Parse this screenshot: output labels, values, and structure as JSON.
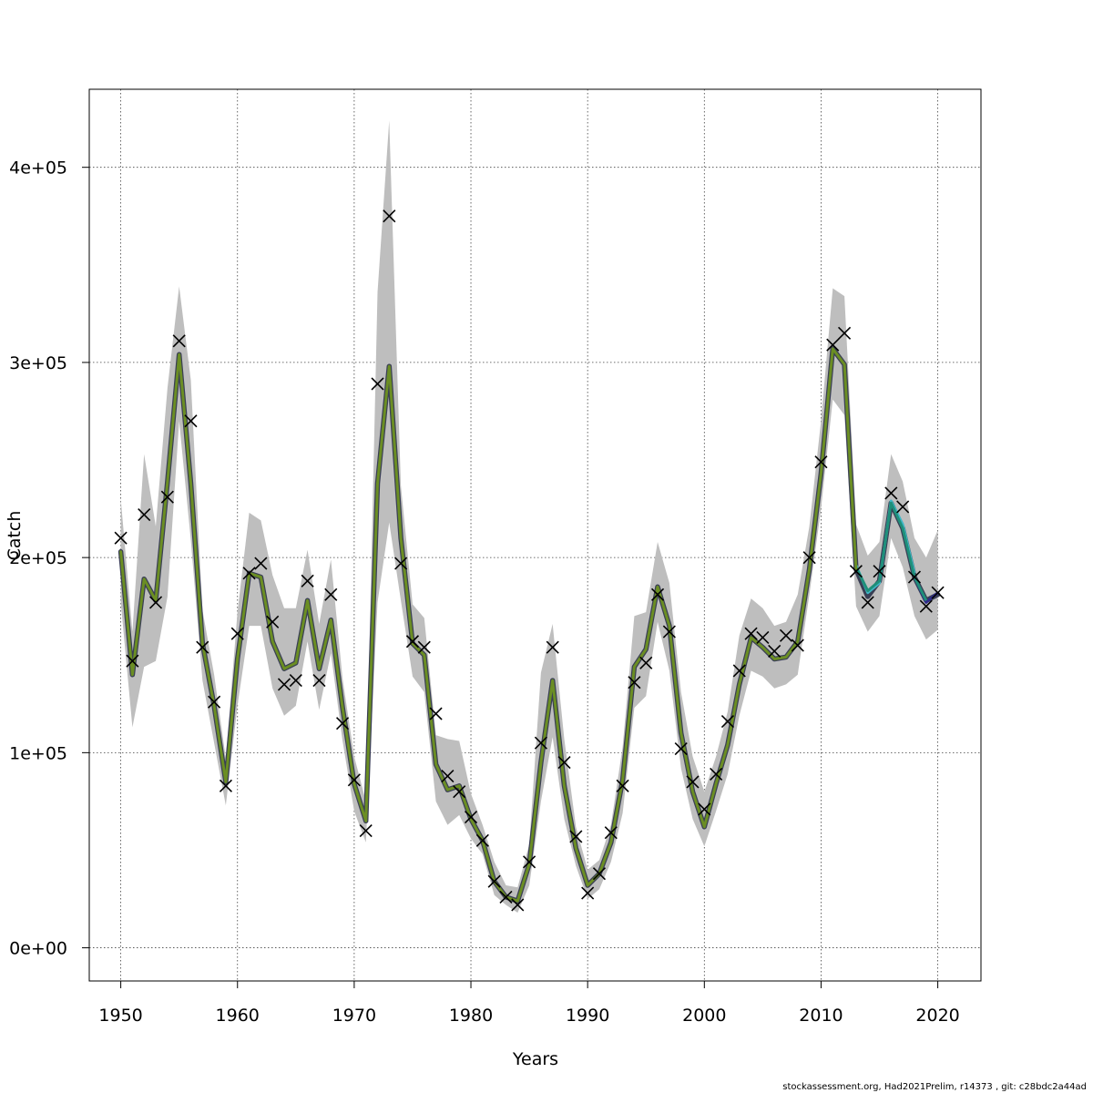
{
  "chart_data": {
    "type": "line",
    "title": "",
    "xlabel": "Years",
    "ylabel": "Catch",
    "xlim": [
      1947.3,
      2023.7
    ],
    "ylim": [
      -17000,
      440000
    ],
    "x_ticks": [
      1950,
      1960,
      1970,
      1980,
      1990,
      2000,
      2010,
      2020
    ],
    "x_tick_labels": [
      "1950",
      "1960",
      "1970",
      "1980",
      "1990",
      "2000",
      "2010",
      "2020"
    ],
    "y_ticks": [
      0,
      100000,
      200000,
      300000,
      400000
    ],
    "y_tick_labels": [
      "0e+00",
      "1e+05",
      "2e+05",
      "3e+05",
      "4e+05"
    ],
    "grid": true,
    "colors": {
      "band": "#bebebe",
      "fit_main": "#6b8e23",
      "fit_peel_1": "#1f8f7a",
      "fit_peel_2": "#40b7c7",
      "fit_peel_3": "#2e2a8a",
      "observed": "#000000"
    },
    "years": [
      1950,
      1951,
      1952,
      1953,
      1954,
      1955,
      1956,
      1957,
      1958,
      1959,
      1960,
      1961,
      1962,
      1963,
      1964,
      1965,
      1966,
      1967,
      1968,
      1969,
      1970,
      1971,
      1972,
      1973,
      1974,
      1975,
      1976,
      1977,
      1978,
      1979,
      1980,
      1981,
      1982,
      1983,
      1984,
      1985,
      1986,
      1987,
      1988,
      1989,
      1990,
      1991,
      1992,
      1993,
      1994,
      1995,
      1996,
      1997,
      1998,
      1999,
      2000,
      2001,
      2002,
      2003,
      2004,
      2005,
      2006,
      2007,
      2008,
      2009,
      2010,
      2011,
      2012,
      2013,
      2014,
      2015,
      2016,
      2017,
      2018,
      2019,
      2020
    ],
    "observed": [
      210000,
      147000,
      222000,
      177000,
      231000,
      311000,
      270000,
      154000,
      126000,
      83000,
      161000,
      192000,
      197000,
      167000,
      135000,
      137000,
      188000,
      137000,
      181000,
      115000,
      86000,
      60000,
      289000,
      375000,
      197000,
      157000,
      154000,
      120000,
      88000,
      80000,
      67000,
      55000,
      34000,
      26000,
      22000,
      44000,
      105000,
      154000,
      95000,
      57000,
      28000,
      38000,
      59000,
      83000,
      136000,
      146000,
      181000,
      162000,
      102000,
      85000,
      71000,
      89000,
      116000,
      142000,
      161000,
      159000,
      152000,
      160000,
      155000,
      200000,
      249000,
      309000,
      315000,
      193000,
      177000,
      193000,
      233000,
      226000,
      190000,
      175000,
      182000
    ],
    "fitted": [
      203000,
      140000,
      189000,
      178000,
      239000,
      304000,
      238000,
      156000,
      124000,
      85000,
      148000,
      192000,
      190000,
      157000,
      143000,
      146000,
      178000,
      143000,
      168000,
      123000,
      84000,
      65000,
      238000,
      298000,
      210000,
      156000,
      150000,
      94000,
      81000,
      83000,
      66000,
      55000,
      34000,
      26000,
      24000,
      43000,
      95000,
      137000,
      83000,
      51000,
      32000,
      38000,
      54000,
      86000,
      144000,
      153000,
      185000,
      165000,
      110000,
      80000,
      62000,
      84000,
      104000,
      135000,
      159000,
      154000,
      148000,
      149000,
      157000,
      194000,
      243000,
      307000,
      299000,
      194000,
      180000,
      188000,
      228000,
      215000,
      190000,
      178000,
      181000
    ],
    "ci_lower": [
      177000,
      113000,
      144000,
      147000,
      180000,
      270000,
      209000,
      137000,
      105000,
      73000,
      124000,
      165000,
      165000,
      133000,
      119000,
      124000,
      157000,
      122000,
      151000,
      106000,
      70000,
      54000,
      177000,
      218000,
      178000,
      139000,
      131000,
      75000,
      63000,
      68000,
      56000,
      48000,
      27000,
      22000,
      18000,
      32000,
      75000,
      108000,
      66000,
      42000,
      25000,
      30000,
      44000,
      69000,
      123000,
      129000,
      167000,
      142000,
      92000,
      66000,
      52000,
      70000,
      89000,
      119000,
      142000,
      139000,
      133000,
      135000,
      140000,
      181000,
      225000,
      281000,
      273000,
      175000,
      162000,
      170000,
      210000,
      195000,
      170000,
      158000,
      163000
    ],
    "ci_upper": [
      230000,
      162000,
      253000,
      216000,
      287000,
      339000,
      291000,
      173000,
      140000,
      97000,
      172000,
      223000,
      219000,
      191000,
      174000,
      174000,
      204000,
      166000,
      199000,
      138000,
      98000,
      75000,
      336000,
      424000,
      237000,
      176000,
      169000,
      109000,
      107000,
      106000,
      79000,
      63000,
      44000,
      32000,
      31000,
      53000,
      141000,
      166000,
      107000,
      62000,
      40000,
      45000,
      63000,
      103000,
      170000,
      172000,
      208000,
      187000,
      131000,
      98000,
      80000,
      98000,
      121000,
      160000,
      179000,
      174000,
      165000,
      167000,
      181000,
      216000,
      270000,
      338000,
      334000,
      217000,
      201000,
      208000,
      253000,
      239000,
      210000,
      200000,
      214000
    ],
    "peel_1_tail": [
      [
        2013,
        195000
      ],
      [
        2014,
        183000
      ],
      [
        2015,
        188000
      ],
      [
        2016,
        228000
      ],
      [
        2017,
        215000
      ],
      [
        2018,
        190000
      ],
      [
        2019,
        178000
      ]
    ],
    "peel_2_tail": [
      [
        2013,
        196000
      ],
      [
        2014,
        182000
      ],
      [
        2015,
        187000
      ],
      [
        2016,
        229000
      ],
      [
        2017,
        217000
      ],
      [
        2018,
        192000
      ]
    ],
    "peel_3_tail": [
      [
        2016,
        228000
      ],
      [
        2017,
        216000
      ],
      [
        2018,
        190000
      ],
      [
        2019,
        177000
      ],
      [
        2020,
        182000
      ]
    ],
    "footer": "stockassessment.org, Had2021Prelim, r14373 , git: c28bdc2a44ad"
  }
}
